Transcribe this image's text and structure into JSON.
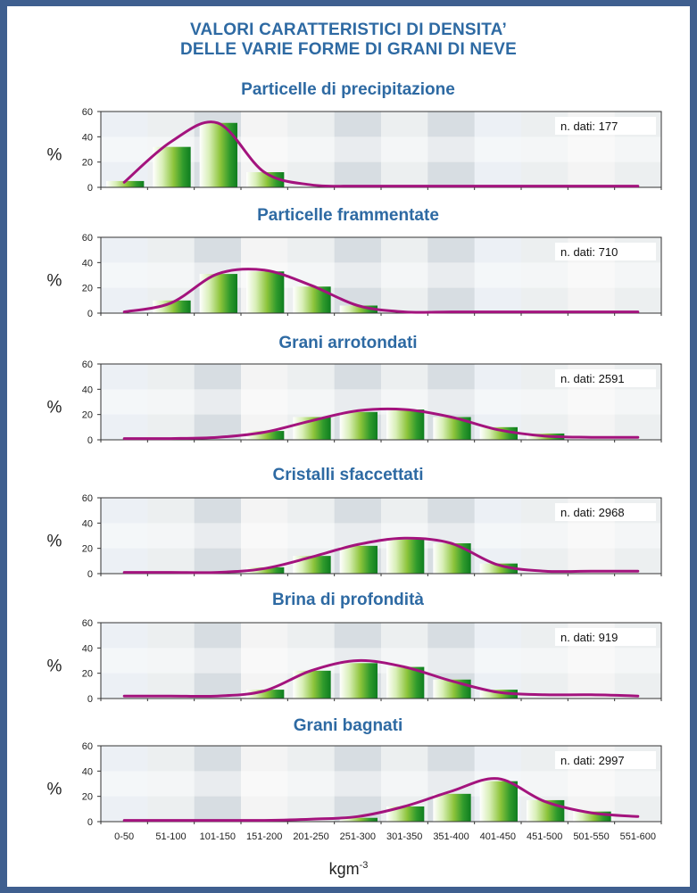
{
  "title_line1": "VALORI CARATTERISTICI DI DENSITA’",
  "title_line2": "DELLE VARIE FORME DI GRANI DI NEVE",
  "x_unit": "kgm",
  "x_unit_exp": "-3",
  "y_label": "%",
  "categories": [
    "0-50",
    "51-100",
    "101-150",
    "151-200",
    "201-250",
    "251-300",
    "301-350",
    "351-400",
    "401-450",
    "451-500",
    "501-550",
    "551-600"
  ],
  "y_ticks": [
    0,
    20,
    40,
    60
  ],
  "colors": {
    "frame": "#3f5f8f",
    "title": "#2e6aa3",
    "curve": "#a3137d",
    "bar_dark": "#0e7d1f",
    "bar_light": "#ffffff",
    "bar_mid": "#8cc43a"
  },
  "chart_data": [
    {
      "type": "bar",
      "title": "Particelle di precipitazione",
      "annotation": "n. dati: 177",
      "ylim": [
        0,
        60
      ],
      "ylabel": "%",
      "categories": [
        "0-50",
        "51-100",
        "101-150",
        "151-200",
        "201-250",
        "251-300",
        "301-350",
        "351-400",
        "401-450",
        "451-500",
        "501-550",
        "551-600"
      ],
      "values": [
        5,
        32,
        51,
        12,
        0,
        0,
        0,
        0,
        0,
        0,
        0,
        0
      ],
      "curve": [
        4,
        36,
        51,
        12,
        2,
        1,
        1,
        1,
        1,
        1,
        1,
        1
      ]
    },
    {
      "type": "bar",
      "title": "Particelle frammentate",
      "annotation": "n. dati: 710",
      "ylim": [
        0,
        60
      ],
      "ylabel": "%",
      "categories": [
        "0-50",
        "51-100",
        "101-150",
        "151-200",
        "201-250",
        "251-300",
        "301-350",
        "351-400",
        "401-450",
        "451-500",
        "501-550",
        "551-600"
      ],
      "values": [
        0,
        10,
        31,
        33,
        21,
        6,
        0,
        0,
        0,
        0,
        0,
        0
      ],
      "curve": [
        1,
        8,
        31,
        34,
        22,
        6,
        1,
        1,
        1,
        1,
        1,
        1
      ]
    },
    {
      "type": "bar",
      "title": "Grani arrotondati",
      "annotation": "n. dati: 2591",
      "ylim": [
        0,
        60
      ],
      "ylabel": "%",
      "categories": [
        "0-50",
        "51-100",
        "101-150",
        "151-200",
        "201-250",
        "251-300",
        "301-350",
        "351-400",
        "401-450",
        "451-500",
        "501-550",
        "551-600"
      ],
      "values": [
        0,
        0,
        0,
        7,
        18,
        22,
        24,
        18,
        10,
        5,
        0,
        0
      ],
      "curve": [
        1,
        1,
        2,
        6,
        15,
        23,
        24,
        18,
        8,
        3,
        2,
        2
      ]
    },
    {
      "type": "bar",
      "title": "Cristalli sfaccettati",
      "annotation": "n. dati: 2968",
      "ylim": [
        0,
        60
      ],
      "ylabel": "%",
      "categories": [
        "0-50",
        "51-100",
        "101-150",
        "151-200",
        "201-250",
        "251-300",
        "301-350",
        "351-400",
        "401-450",
        "451-500",
        "501-550",
        "551-600"
      ],
      "values": [
        0,
        0,
        0,
        5,
        14,
        22,
        27,
        24,
        8,
        0,
        0,
        0
      ],
      "curve": [
        1,
        1,
        1,
        4,
        13,
        23,
        28,
        24,
        7,
        2,
        2,
        2
      ]
    },
    {
      "type": "bar",
      "title": "Brina di profondità",
      "annotation": "n. dati: 919",
      "ylim": [
        0,
        60
      ],
      "ylabel": "%",
      "categories": [
        "0-50",
        "51-100",
        "101-150",
        "151-200",
        "201-250",
        "251-300",
        "301-350",
        "351-400",
        "401-450",
        "451-500",
        "501-550",
        "551-600"
      ],
      "values": [
        0,
        0,
        0,
        7,
        22,
        28,
        25,
        15,
        7,
        0,
        0,
        0
      ],
      "curve": [
        2,
        2,
        2,
        6,
        22,
        30,
        25,
        14,
        5,
        3,
        3,
        2
      ]
    },
    {
      "type": "bar",
      "title": "Grani bagnati",
      "annotation": "n. dati: 2997",
      "ylim": [
        0,
        60
      ],
      "ylabel": "%",
      "categories": [
        "0-50",
        "51-100",
        "101-150",
        "151-200",
        "201-250",
        "251-300",
        "301-350",
        "351-400",
        "401-450",
        "451-500",
        "501-550",
        "551-600"
      ],
      "values": [
        0,
        0,
        0,
        0,
        0,
        3,
        12,
        22,
        32,
        17,
        8,
        0
      ],
      "curve": [
        1,
        1,
        1,
        1,
        2,
        4,
        12,
        24,
        34,
        16,
        7,
        4
      ]
    }
  ]
}
